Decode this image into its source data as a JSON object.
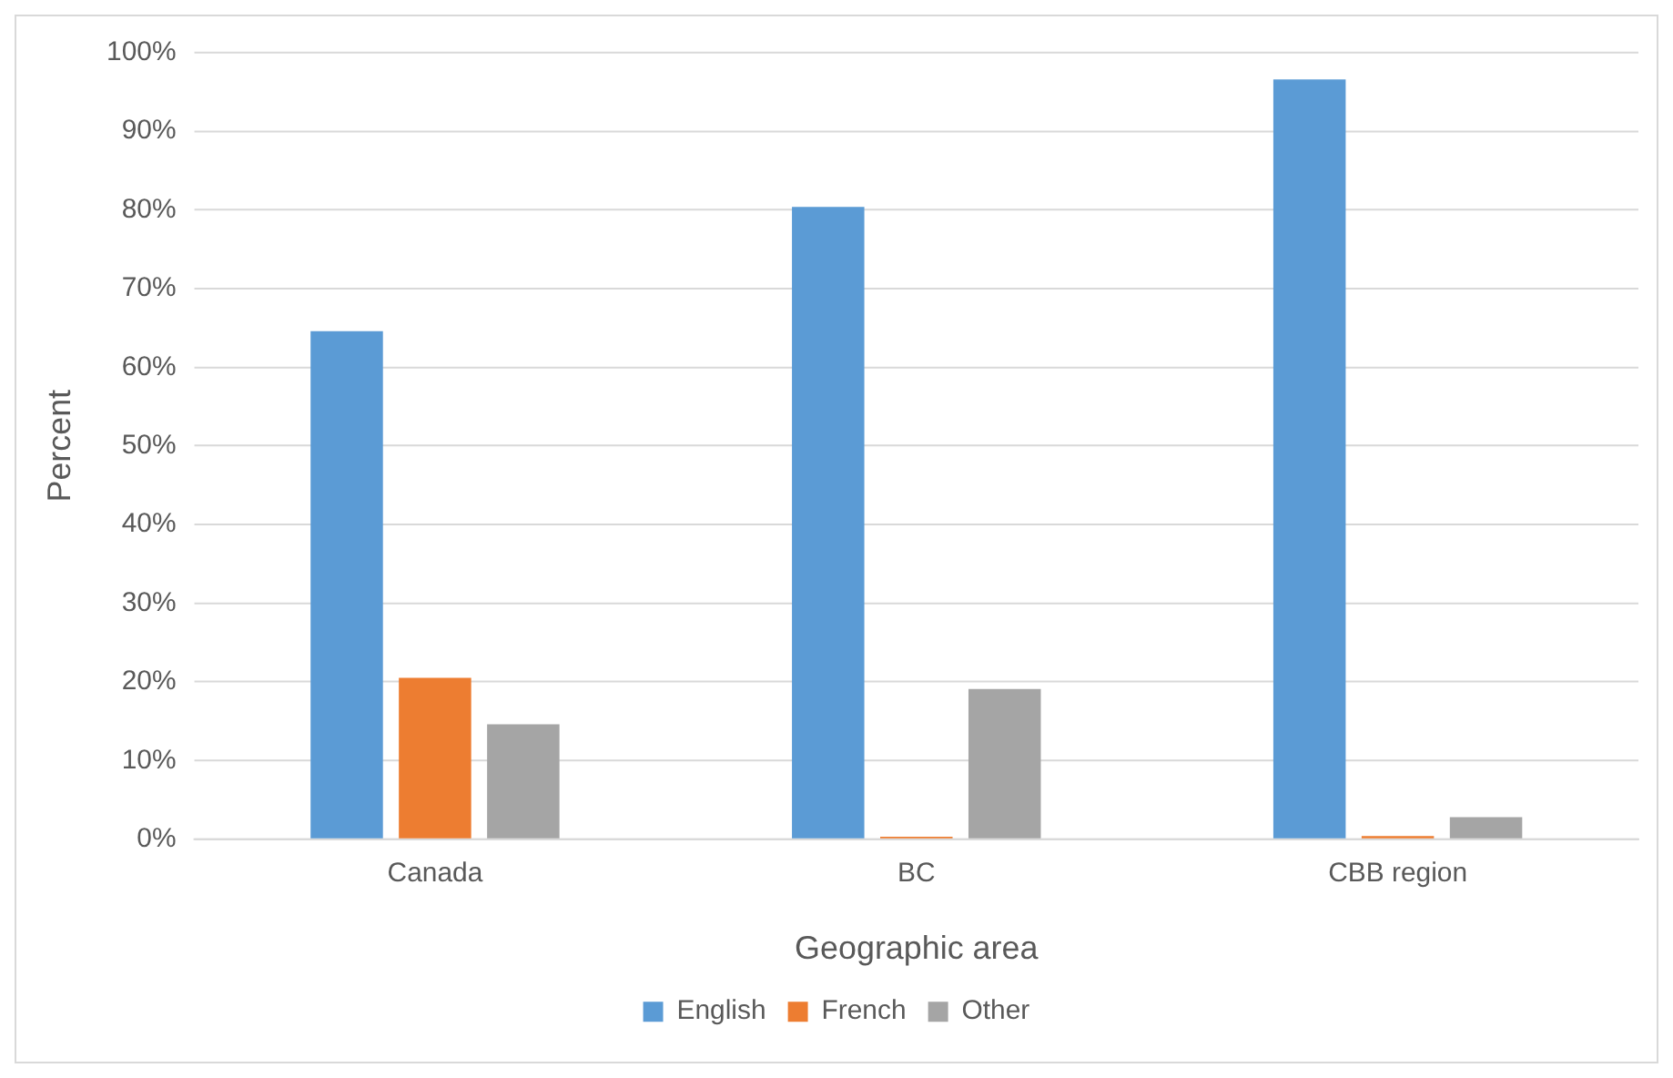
{
  "chart_data": {
    "type": "bar",
    "xlabel": "Geographic area",
    "ylabel": "Percent",
    "categories": [
      "Canada",
      "BC",
      "CBB region"
    ],
    "series": [
      {
        "name": "English",
        "color": "#5b9bd5",
        "values": [
          64.6,
          80.4,
          96.6
        ]
      },
      {
        "name": "French",
        "color": "#ed7d31",
        "values": [
          20.5,
          0.3,
          0.4
        ]
      },
      {
        "name": "Other",
        "color": "#a5a5a5",
        "values": [
          14.6,
          19.1,
          2.8
        ]
      }
    ],
    "ylim": [
      0,
      100
    ],
    "yticks": [
      {
        "value": 0,
        "label": "0%"
      },
      {
        "value": 10,
        "label": "10%"
      },
      {
        "value": 20,
        "label": "20%"
      },
      {
        "value": 30,
        "label": "30%"
      },
      {
        "value": 40,
        "label": "40%"
      },
      {
        "value": 50,
        "label": "50%"
      },
      {
        "value": 60,
        "label": "60%"
      },
      {
        "value": 70,
        "label": "70%"
      },
      {
        "value": 80,
        "label": "80%"
      },
      {
        "value": 90,
        "label": "90%"
      },
      {
        "value": 100,
        "label": "100%"
      }
    ],
    "grid": "y",
    "legend": "bottom"
  }
}
